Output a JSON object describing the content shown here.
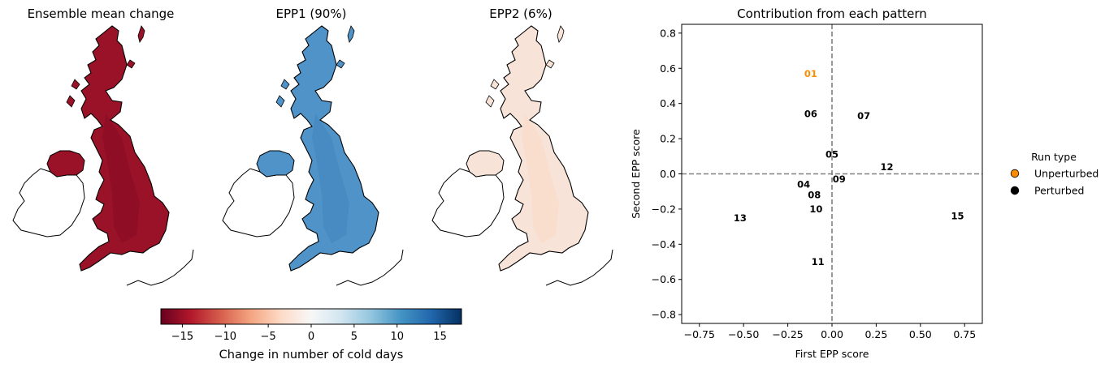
{
  "maps": {
    "panels": [
      {
        "title": "Ensemble mean change",
        "fill": "#9a1228",
        "fill_dark": "#7a0a20"
      },
      {
        "title": "EPP1 (90%)",
        "fill": "#4f93c8",
        "fill_dark": "#3b7fb8"
      },
      {
        "title": "EPP2 (6%)",
        "fill": "#f8e3d8",
        "fill_dark": "#fbd3bd"
      }
    ],
    "colorbar": {
      "label": "Change in number of cold days",
      "min": -17.5,
      "max": 17.5,
      "ticks": [
        -15,
        -10,
        -5,
        0,
        5,
        10,
        15
      ],
      "tick_labels": [
        "−15",
        "−10",
        "−5",
        "0",
        "5",
        "10",
        "15"
      ],
      "colors": [
        "#67001f",
        "#b2182b",
        "#d6604d",
        "#f4a582",
        "#fddbc7",
        "#f7f7f7",
        "#d1e5f0",
        "#92c5de",
        "#4393c3",
        "#2166ac",
        "#053061"
      ]
    }
  },
  "chart_data": {
    "type": "scatter",
    "title": "Contribution from each pattern",
    "xlabel": "First EPP score",
    "ylabel": "Second EPP score",
    "xlim": [
      -0.85,
      0.85
    ],
    "ylim": [
      -0.85,
      0.85
    ],
    "xticks": [
      -0.75,
      -0.5,
      -0.25,
      0.0,
      0.25,
      0.5,
      0.75
    ],
    "xtick_labels": [
      "−0.75",
      "−0.50",
      "−0.25",
      "0.00",
      "0.25",
      "0.50",
      "0.75"
    ],
    "yticks": [
      0.8,
      0.6,
      0.4,
      0.2,
      0.0,
      -0.2,
      -0.4,
      -0.6,
      -0.8
    ],
    "ytick_labels": [
      "0.8",
      "0.6",
      "0.4",
      "0.2",
      "0.0",
      "−0.2",
      "−0.4",
      "−0.6",
      "−0.8"
    ],
    "reference_lines": {
      "x": 0,
      "y": 0
    },
    "grid": false,
    "points": [
      {
        "label": "01",
        "x": -0.12,
        "y": 0.57,
        "type": "Unperturbed"
      },
      {
        "label": "04",
        "x": -0.16,
        "y": -0.06,
        "type": "Perturbed"
      },
      {
        "label": "05",
        "x": 0.0,
        "y": 0.11,
        "type": "Perturbed"
      },
      {
        "label": "06",
        "x": -0.12,
        "y": 0.34,
        "type": "Perturbed"
      },
      {
        "label": "07",
        "x": 0.18,
        "y": 0.33,
        "type": "Perturbed"
      },
      {
        "label": "08",
        "x": -0.1,
        "y": -0.12,
        "type": "Perturbed"
      },
      {
        "label": "09",
        "x": 0.04,
        "y": -0.03,
        "type": "Perturbed"
      },
      {
        "label": "10",
        "x": -0.09,
        "y": -0.2,
        "type": "Perturbed"
      },
      {
        "label": "11",
        "x": -0.08,
        "y": -0.5,
        "type": "Perturbed"
      },
      {
        "label": "12",
        "x": 0.31,
        "y": 0.04,
        "type": "Perturbed"
      },
      {
        "label": "13",
        "x": -0.52,
        "y": -0.25,
        "type": "Perturbed"
      },
      {
        "label": "15",
        "x": 0.71,
        "y": -0.24,
        "type": "Perturbed"
      }
    ],
    "legend": {
      "title": "Run type",
      "placement": "outside-right",
      "entries": [
        {
          "label": "Unperturbed",
          "color": "#ff8c00"
        },
        {
          "label": "Perturbed",
          "color": "#000000"
        }
      ]
    },
    "colors": {
      "Unperturbed": "#ff8c00",
      "Perturbed": "#000000"
    }
  }
}
